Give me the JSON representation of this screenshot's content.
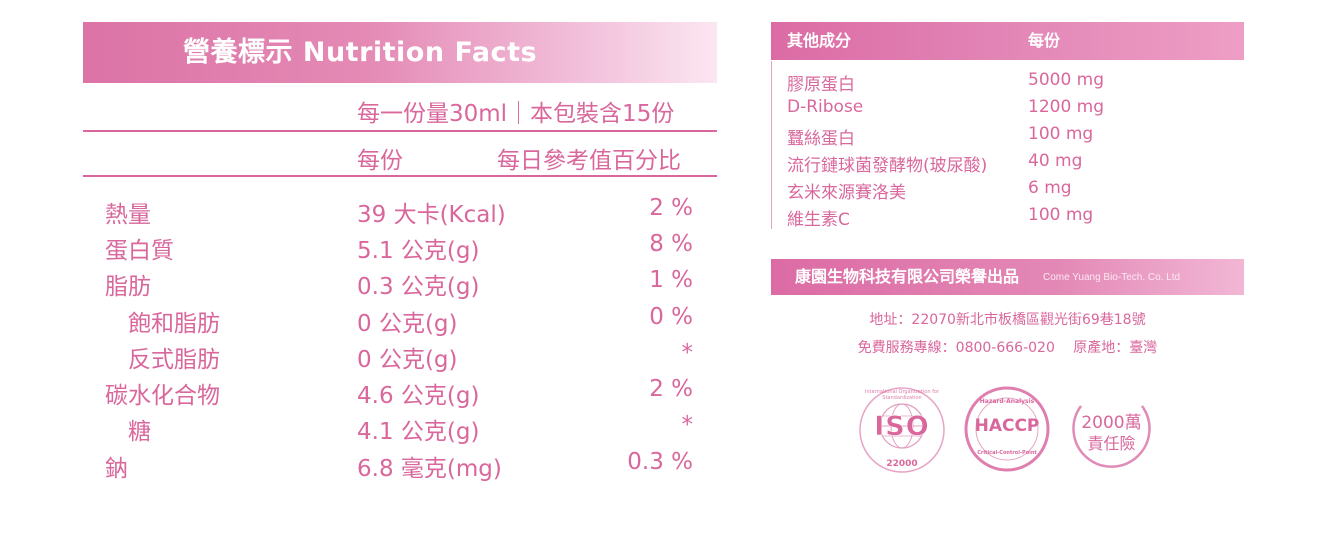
{
  "nutrition": {
    "title": "營養標示 Nutrition Facts",
    "serving": "每一份量30ml｜本包裝含15份",
    "col_per_serving": "每份",
    "col_daily_value": "每日參考值百分比",
    "rows": [
      {
        "name": "熱量",
        "amount": "39 大卡(Kcal)",
        "pct": "2 %"
      },
      {
        "name": "蛋白質",
        "amount": "5.1 公克(g)",
        "pct": "8 %"
      },
      {
        "name": "脂肪",
        "amount": "0.3 公克(g)",
        "pct": "1 %"
      },
      {
        "name": "飽和脂肪",
        "amount": "0 公克(g)",
        "pct": "0 %"
      },
      {
        "name": "反式脂肪",
        "amount": "0 公克(g)",
        "pct": "*"
      },
      {
        "name": "碳水化合物",
        "amount": "4.6 公克(g)",
        "pct": "2 %"
      },
      {
        "name": "糖",
        "amount": "4.1 公克(g)",
        "pct": "*"
      },
      {
        "name": "鈉",
        "amount": "6.8 毫克(mg)",
        "pct": "0.3 %"
      }
    ]
  },
  "other": {
    "col_name": "其他成分",
    "col_amount": "每份",
    "rows": [
      {
        "name": "膠原蛋白",
        "amount": "5000 mg"
      },
      {
        "name": "D-Ribose",
        "amount": "1200 mg"
      },
      {
        "name": "蠶絲蛋白",
        "amount": "100 mg"
      },
      {
        "name": "流行鏈球菌發酵物(玻尿酸)",
        "amount": "40 mg"
      },
      {
        "name": "玄米來源賽洛美",
        "amount": "6 mg"
      },
      {
        "name": "維生素C",
        "amount": "100 mg"
      }
    ]
  },
  "company": {
    "name": "康園生物科技有限公司榮譽出品",
    "name_en": "Come Yuang Bio-Tech. Co. Ltd",
    "address": "地址：22070新北市板橋區觀光街69巷18號",
    "hotline": "免費服務專線：0800-666-020　 原產地：臺灣"
  },
  "badges": {
    "iso_text": "ISO",
    "iso_number": "22000",
    "iso_ring": "International Organization for Standardization",
    "haccp_text": "HACCP",
    "haccp_top": "Hazard-Analysis",
    "haccp_bottom": "Critical-Control-Point",
    "insurance_line1": "2000萬",
    "insurance_line2": "責任險"
  },
  "colors": {
    "accent": "#d9679c",
    "header_pink": "#dc73a6"
  }
}
